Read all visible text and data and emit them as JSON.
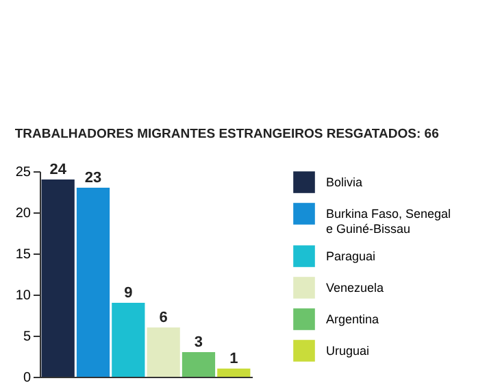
{
  "chart_data": {
    "type": "bar",
    "title": "TRABALHADORES MIGRANTES ESTRANGEIROS RESGATADOS: 66",
    "categories": [
      null,
      null,
      null,
      null,
      null,
      null
    ],
    "series": [
      {
        "name": "Bolivia",
        "color": "#1b2a4a",
        "values": [
          24,
          null,
          null,
          null,
          null,
          null
        ]
      },
      {
        "name": "Burkina Faso, Senegal e Guiné-Bissau",
        "color": "#168ed6",
        "values": [
          null,
          23,
          null,
          null,
          null,
          null
        ]
      },
      {
        "name": "Paraguai",
        "color": "#1cbfd2",
        "values": [
          null,
          null,
          9,
          null,
          null,
          null
        ]
      },
      {
        "name": "Venezuela",
        "color": "#e2ebc0",
        "values": [
          null,
          null,
          null,
          6,
          null,
          null
        ]
      },
      {
        "name": "Argentina",
        "color": "#6cc36b",
        "values": [
          null,
          null,
          null,
          null,
          3,
          null
        ]
      },
      {
        "name": "Uruguai",
        "color": "#c9dc3a",
        "values": [
          null,
          null,
          null,
          null,
          null,
          1
        ]
      }
    ],
    "stacked": true,
    "ylim": [
      0,
      25
    ],
    "yticks": [
      0,
      5,
      10,
      15,
      20,
      25
    ],
    "grid": false,
    "legend": "right",
    "tick_labels": "y",
    "data_labels": true
  }
}
